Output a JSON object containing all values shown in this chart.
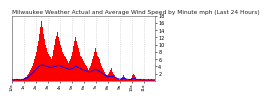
{
  "title": "Milwaukee Weather Actual and Average Wind Speed by Minute mph (Last 24 Hours)",
  "title_fontsize": 4.2,
  "background_color": "#ffffff",
  "bar_color": "#ff0000",
  "line_color": "#0000ff",
  "n_points": 144,
  "ylim": [
    0,
    18
  ],
  "yticks": [
    2,
    4,
    6,
    8,
    10,
    12,
    14,
    16,
    18
  ],
  "ytick_fontsize": 3.5,
  "xtick_fontsize": 3.0,
  "grid_color": "#c0c0c0",
  "bar_heights": [
    0.3,
    0.5,
    0.2,
    0.4,
    0.3,
    0.6,
    0.4,
    0.3,
    0.5,
    0.2,
    0.3,
    0.4,
    0.6,
    0.8,
    1.0,
    1.2,
    1.5,
    2.0,
    2.5,
    3.0,
    3.5,
    4.0,
    5.0,
    6.0,
    7.0,
    8.0,
    9.5,
    11.0,
    13.0,
    15.0,
    16.5,
    15.0,
    13.0,
    11.5,
    10.0,
    9.0,
    8.0,
    7.5,
    7.0,
    6.5,
    6.0,
    7.0,
    8.5,
    10.0,
    11.5,
    12.5,
    13.5,
    12.0,
    11.0,
    10.0,
    9.0,
    8.0,
    7.5,
    7.0,
    6.5,
    6.0,
    5.5,
    5.0,
    5.5,
    6.0,
    7.0,
    8.0,
    9.5,
    11.0,
    12.0,
    11.0,
    10.0,
    9.0,
    8.0,
    7.0,
    6.5,
    6.0,
    5.5,
    5.0,
    4.5,
    4.0,
    3.5,
    3.0,
    3.5,
    4.0,
    5.0,
    6.0,
    7.0,
    8.0,
    9.0,
    8.0,
    7.0,
    6.5,
    6.0,
    5.0,
    4.0,
    3.5,
    3.0,
    2.5,
    2.0,
    1.5,
    1.5,
    2.0,
    2.5,
    3.0,
    3.5,
    2.5,
    2.0,
    1.5,
    1.0,
    0.8,
    0.5,
    0.4,
    0.3,
    0.5,
    0.8,
    1.2,
    1.5,
    1.0,
    0.8,
    0.5,
    0.3,
    0.2,
    0.4,
    0.5,
    0.8,
    1.5,
    2.0,
    1.5,
    1.0,
    0.5,
    0.3,
    0.2,
    0.3,
    0.4,
    0.3,
    0.2,
    0.4,
    0.6,
    0.3,
    0.2,
    0.3,
    0.4,
    0.2,
    0.3,
    0.4,
    0.3,
    0.2,
    0.3
  ],
  "avg_heights": [
    0.3,
    0.3,
    0.3,
    0.3,
    0.4,
    0.4,
    0.4,
    0.3,
    0.3,
    0.3,
    0.4,
    0.4,
    0.5,
    0.6,
    0.7,
    0.8,
    1.0,
    1.2,
    1.5,
    1.8,
    2.0,
    2.3,
    2.6,
    2.9,
    3.2,
    3.5,
    3.8,
    4.0,
    4.2,
    4.3,
    4.4,
    4.4,
    4.3,
    4.2,
    4.1,
    4.0,
    3.9,
    3.8,
    3.8,
    3.7,
    3.7,
    3.8,
    3.9,
    4.0,
    4.1,
    4.2,
    4.3,
    4.2,
    4.1,
    4.0,
    3.9,
    3.8,
    3.7,
    3.6,
    3.5,
    3.4,
    3.3,
    3.2,
    3.2,
    3.3,
    3.4,
    3.5,
    3.7,
    3.9,
    4.0,
    3.9,
    3.8,
    3.6,
    3.5,
    3.3,
    3.2,
    3.1,
    3.0,
    2.9,
    2.8,
    2.7,
    2.6,
    2.5,
    2.5,
    2.6,
    2.7,
    2.8,
    3.0,
    3.1,
    3.2,
    3.0,
    2.9,
    2.7,
    2.6,
    2.4,
    2.2,
    2.0,
    1.8,
    1.6,
    1.4,
    1.2,
    1.1,
    1.1,
    1.2,
    1.3,
    1.4,
    1.2,
    1.1,
    1.0,
    0.9,
    0.7,
    0.6,
    0.5,
    0.5,
    0.5,
    0.5,
    0.6,
    0.7,
    0.6,
    0.5,
    0.5,
    0.4,
    0.4,
    0.4,
    0.4,
    0.5,
    0.6,
    0.7,
    0.6,
    0.5,
    0.4,
    0.4,
    0.4,
    0.4,
    0.4,
    0.3,
    0.3,
    0.3,
    0.3,
    0.3,
    0.3,
    0.3,
    0.3,
    0.3,
    0.3,
    0.3,
    0.3,
    0.3,
    0.3
  ],
  "tick_step": 12,
  "tick_labels": [
    "12a",
    "1a",
    "2a",
    "3a",
    "4a",
    "5a",
    "6a",
    "7a",
    "8a",
    "9a",
    "10a",
    "11a",
    "12p"
  ]
}
